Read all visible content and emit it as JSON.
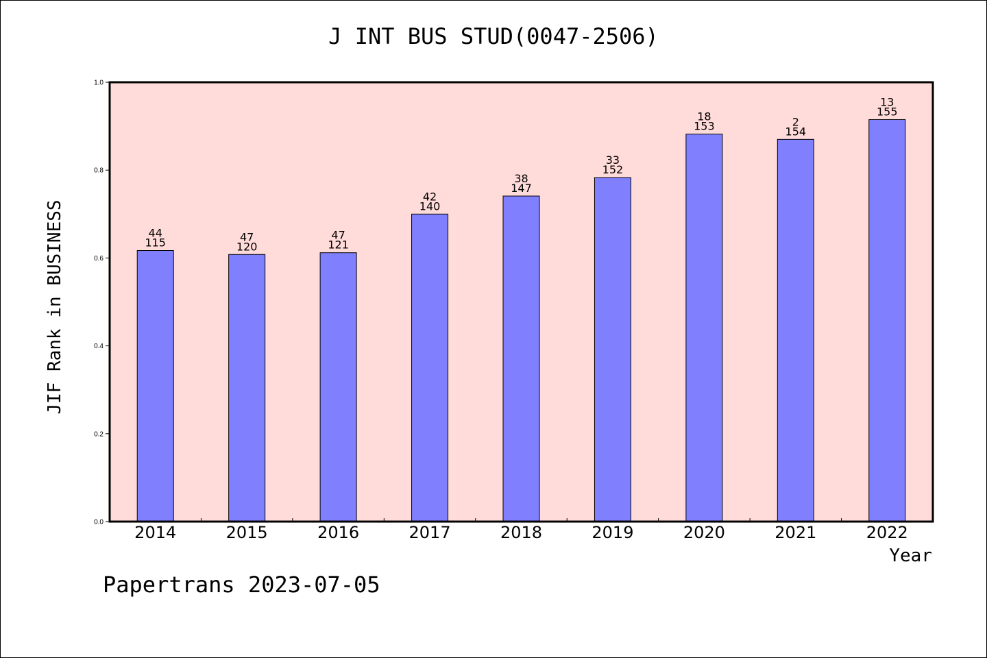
{
  "chart_data": {
    "type": "bar",
    "title": "J INT BUS STUD(0047-2506)",
    "xlabel": "Year",
    "ylabel": "JIF Rank in BUSINESS",
    "categories": [
      "2014",
      "2015",
      "2016",
      "2017",
      "2018",
      "2019",
      "2020",
      "2021",
      "2022"
    ],
    "values": [
      0.617,
      0.608,
      0.612,
      0.7,
      0.741,
      0.783,
      0.882,
      0.87,
      0.915
    ],
    "bar_labels_top": [
      "44",
      "47",
      "47",
      "42",
      "38",
      "33",
      "18",
      "2",
      "13"
    ],
    "bar_labels_bottom": [
      "115",
      "120",
      "121",
      "140",
      "147",
      "152",
      "153",
      "154",
      "155"
    ],
    "ylim": [
      0.0,
      1.0
    ],
    "yticks": [
      "0.0",
      "0.2",
      "0.4",
      "0.6",
      "0.8",
      "1.0"
    ],
    "grid": false,
    "legend": "none",
    "colors": {
      "bar": "#8080ff",
      "plot_bg": "#ffdbd9",
      "bar_edge": "#000000"
    }
  },
  "footer": "Papertrans 2023-07-05"
}
